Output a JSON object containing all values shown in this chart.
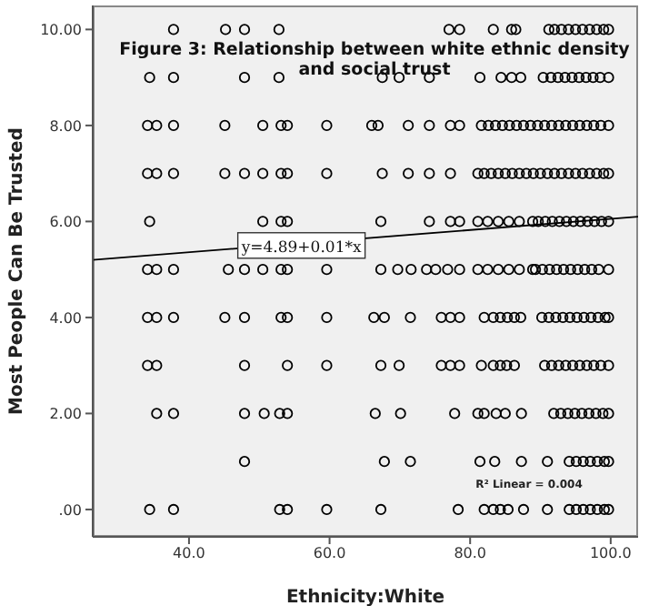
{
  "chart_data": {
    "type": "scatter",
    "title": "Figure 3: Relationship between white ethnic density and social trust",
    "xlabel": "Ethnicity:White",
    "ylabel": "Most People Can Be Trusted",
    "xlim": [
      26.3,
      103.9
    ],
    "ylim": [
      -0.57,
      10.5
    ],
    "xticks": [
      {
        "value": 40,
        "label": "40.0"
      },
      {
        "value": 60,
        "label": "60.0"
      },
      {
        "value": 80,
        "label": "80.0"
      },
      {
        "value": 100,
        "label": "100.0"
      }
    ],
    "yticks": [
      {
        "value": 0,
        "label": ".00"
      },
      {
        "value": 2,
        "label": "2.00"
      },
      {
        "value": 4,
        "label": "4.00"
      },
      {
        "value": 6,
        "label": "6.00"
      },
      {
        "value": 8,
        "label": "8.00"
      },
      {
        "value": 10,
        "label": "10.00"
      }
    ],
    "grid": false,
    "legend": false,
    "marker": "circle",
    "annotations": [
      {
        "text": "y=4.89+0.01*x",
        "x": 56,
        "y": 5.5
      },
      "R² Linear = 0.004"
    ],
    "series": [
      {
        "color": "#000000",
        "x": [
          37.8,
          45.2,
          47.9,
          52.8,
          77.0,
          78.5,
          83.3,
          85.9,
          86.5,
          91.2,
          92,
          93,
          94,
          95,
          96,
          97,
          98,
          99,
          99.7
        ],
        "values": [
          10,
          10,
          10,
          10,
          10,
          10,
          10,
          10,
          10,
          10,
          10,
          10,
          10,
          10,
          10,
          10,
          10,
          10,
          10
        ]
      },
      {
        "color": "#000000",
        "x": [
          34.4,
          37.8,
          47.9,
          52.8,
          67.5,
          69.9,
          74.2,
          81.4,
          84.4,
          85.9,
          87.2,
          90.4,
          91.5,
          92.5,
          93.5,
          94.5,
          95.5,
          96.5,
          97.5,
          98.5,
          99.7
        ],
        "values": [
          9,
          9,
          9,
          9,
          9,
          9,
          9,
          9,
          9,
          9,
          9,
          9,
          9,
          9,
          9,
          9,
          9,
          9,
          9,
          9,
          9
        ]
      },
      {
        "color": "#000000",
        "x": [
          34.1,
          35.4,
          37.8,
          45.1,
          50.5,
          53.1,
          54.0,
          59.6,
          66.0,
          66.9,
          71.2,
          74.2,
          77.2,
          78.5,
          81.6,
          82.6,
          83.6,
          84.6,
          85.6,
          86.6,
          87.6,
          88.6,
          89.6,
          90.6,
          91.6,
          92.6,
          93.6,
          94.6,
          95.6,
          96.6,
          97.6,
          98.6,
          99.7
        ],
        "values": [
          8,
          8,
          8,
          8,
          8,
          8,
          8,
          8,
          8,
          8,
          8,
          8,
          8,
          8,
          8,
          8,
          8,
          8,
          8,
          8,
          8,
          8,
          8,
          8,
          8,
          8,
          8,
          8,
          8,
          8,
          8,
          8,
          8
        ]
      },
      {
        "color": "#000000",
        "x": [
          34.1,
          35.4,
          37.8,
          45.1,
          47.9,
          50.5,
          53.1,
          54.0,
          59.6,
          67.5,
          71.2,
          74.2,
          77.2,
          81.1,
          82,
          83,
          84,
          85,
          86,
          87,
          88,
          89,
          90,
          91,
          92,
          93,
          94,
          95,
          96,
          97,
          98,
          99,
          99.7
        ],
        "values": [
          7,
          7,
          7,
          7,
          7,
          7,
          7,
          7,
          7,
          7,
          7,
          7,
          7,
          7,
          7,
          7,
          7,
          7,
          7,
          7,
          7,
          7,
          7,
          7,
          7,
          7,
          7,
          7,
          7,
          7,
          7,
          7,
          7
        ]
      },
      {
        "color": "#000000",
        "x": [
          34.4,
          50.5,
          53.1,
          54.0,
          67.3,
          74.2,
          77.2,
          78.5,
          81.1,
          82.5,
          84,
          85.5,
          87,
          88.9,
          89.7,
          90.7,
          91.7,
          92.7,
          93.7,
          94.7,
          95.7,
          96.7,
          97.7,
          98.7,
          99.7
        ],
        "values": [
          6,
          6,
          6,
          6,
          6,
          6,
          6,
          6,
          6,
          6,
          6,
          6,
          6,
          6,
          6,
          6,
          6,
          6,
          6,
          6,
          6,
          6,
          6,
          6,
          6
        ]
      },
      {
        "color": "#000000",
        "x": [
          34.1,
          35.4,
          37.8,
          45.6,
          47.9,
          50.5,
          53.1,
          54.0,
          59.6,
          67.3,
          69.7,
          71.6,
          73.8,
          75.1,
          76.8,
          78.5,
          81.1,
          82.5,
          84,
          85.5,
          87,
          88.9,
          89.3,
          90.3,
          91.3,
          92.3,
          93.3,
          94.3,
          95.3,
          96.3,
          97.3,
          98.3,
          99.7
        ],
        "values": [
          5,
          5,
          5,
          5,
          5,
          5,
          5,
          5,
          5,
          5,
          5,
          5,
          5,
          5,
          5,
          5,
          5,
          5,
          5,
          5,
          5,
          5,
          5,
          5,
          5,
          5,
          5,
          5,
          5,
          5,
          5,
          5,
          5
        ]
      },
      {
        "color": "#000000",
        "x": [
          34.1,
          35.4,
          37.8,
          45.1,
          47.9,
          53.1,
          54.0,
          59.6,
          66.3,
          67.8,
          71.5,
          75.9,
          77.2,
          78.5,
          82.0,
          83.3,
          84.3,
          85.3,
          86.3,
          87.2,
          90.2,
          91.2,
          92.2,
          93.2,
          94.2,
          95.2,
          96.2,
          97.2,
          98.2,
          99.2,
          99.7
        ],
        "values": [
          4,
          4,
          4,
          4,
          4,
          4,
          4,
          4,
          4,
          4,
          4,
          4,
          4,
          4,
          4,
          4,
          4,
          4,
          4,
          4,
          4,
          4,
          4,
          4,
          4,
          4,
          4,
          4,
          4,
          4,
          4
        ]
      },
      {
        "color": "#000000",
        "x": [
          34.1,
          35.4,
          47.9,
          54.0,
          59.6,
          67.3,
          69.9,
          75.9,
          77.2,
          78.5,
          81.6,
          83.3,
          84.3,
          85.2,
          86.3,
          90.6,
          91.6,
          92.6,
          93.6,
          94.6,
          95.6,
          96.6,
          97.6,
          98.6,
          99.7
        ],
        "values": [
          3,
          3,
          3,
          3,
          3,
          3,
          3,
          3,
          3,
          3,
          3,
          3,
          3,
          3,
          3,
          3,
          3,
          3,
          3,
          3,
          3,
          3,
          3,
          3,
          3
        ]
      },
      {
        "color": "#000000",
        "x": [
          35.4,
          37.8,
          47.9,
          50.7,
          52.9,
          54.0,
          66.5,
          70.1,
          77.8,
          81.1,
          82.0,
          83.7,
          85.0,
          87.3,
          91.9,
          92.9,
          93.9,
          94.9,
          95.9,
          96.9,
          97.9,
          98.9,
          99.7
        ],
        "values": [
          2,
          2,
          2,
          2,
          2,
          2,
          2,
          2,
          2,
          2,
          2,
          2,
          2,
          2,
          2,
          2,
          2,
          2,
          2,
          2,
          2,
          2,
          2
        ]
      },
      {
        "color": "#000000",
        "x": [
          47.9,
          67.8,
          71.5,
          81.4,
          83.5,
          87.3,
          91.0,
          94.1,
          95.1,
          96.1,
          97.1,
          98.1,
          99.1,
          99.7
        ],
        "values": [
          1,
          1,
          1,
          1,
          1,
          1,
          1,
          1,
          1,
          1,
          1,
          1,
          1,
          1
        ]
      },
      {
        "color": "#000000",
        "x": [
          34.4,
          37.8,
          52.9,
          54.0,
          59.6,
          67.3,
          78.3,
          82.0,
          83.3,
          84.3,
          85.4,
          87.6,
          91.0,
          94.1,
          95.1,
          96.1,
          97.1,
          98.1,
          99.1,
          99.7
        ],
        "values": [
          0,
          0,
          0,
          0,
          0,
          0,
          0,
          0,
          0,
          0,
          0,
          0,
          0,
          0,
          0,
          0,
          0,
          0,
          0,
          0
        ]
      },
      {
        "type": "line",
        "marker": "none",
        "color": "#000000",
        "x": [
          26.3,
          103.9
        ],
        "values": [
          5.2,
          6.1
        ]
      }
    ]
  }
}
